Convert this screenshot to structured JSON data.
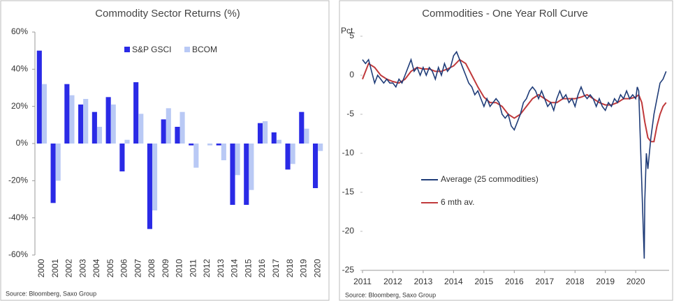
{
  "chart_data": [
    {
      "type": "bar",
      "title": "Commodity Sector Returns (%)",
      "categories": [
        "2000",
        "2001",
        "2002",
        "2003",
        "2004",
        "2005",
        "2006",
        "2007",
        "2008",
        "2009",
        "2010",
        "2011",
        "2012",
        "2013",
        "2014",
        "2015",
        "2016",
        "2017",
        "2018",
        "2019",
        "2020"
      ],
      "series": [
        {
          "name": "S&P GSCI",
          "color": "#2a2ae6",
          "values": [
            50,
            -32,
            32,
            21,
            17,
            25,
            -15,
            33,
            -46,
            13,
            9,
            -1,
            0,
            -1,
            -33,
            -33,
            11,
            6,
            -14,
            17,
            -24
          ]
        },
        {
          "name": "BCOM",
          "color": "#b9c9f5",
          "values": [
            32,
            -20,
            26,
            24,
            9,
            21,
            2,
            16,
            -36,
            19,
            17,
            -13,
            -1,
            -9,
            -17,
            -25,
            12,
            2,
            -11,
            8,
            -4
          ]
        }
      ],
      "ylim": [
        -60,
        60
      ],
      "yticks": [
        {
          "value": -60,
          "label": "-60%"
        },
        {
          "value": -40,
          "label": "-40%"
        },
        {
          "value": -20,
          "label": "-20%"
        },
        {
          "value": 0,
          "label": "0%"
        },
        {
          "value": 20,
          "label": "20%"
        },
        {
          "value": 40,
          "label": "40%"
        },
        {
          "value": 60,
          "label": "60%"
        }
      ],
      "source": "Source: Bloomberg,  Saxo Group"
    },
    {
      "type": "line",
      "title": "Commodities - One Year Roll Curve",
      "y_label": "Pct.",
      "series": [
        {
          "name": "Average (25 commodities)",
          "color": "#1f3c78",
          "x": [
            2011.0,
            2011.1,
            2011.2,
            2011.3,
            2011.4,
            2011.5,
            2011.6,
            2011.7,
            2011.8,
            2011.9,
            2012.0,
            2012.1,
            2012.2,
            2012.3,
            2012.4,
            2012.5,
            2012.6,
            2012.7,
            2012.8,
            2012.9,
            2013.0,
            2013.1,
            2013.2,
            2013.3,
            2013.4,
            2013.5,
            2013.6,
            2013.7,
            2013.8,
            2013.9,
            2014.0,
            2014.1,
            2014.2,
            2014.3,
            2014.4,
            2014.5,
            2014.6,
            2014.7,
            2014.8,
            2014.9,
            2015.0,
            2015.1,
            2015.2,
            2015.3,
            2015.4,
            2015.5,
            2015.6,
            2015.7,
            2015.8,
            2015.9,
            2016.0,
            2016.1,
            2016.2,
            2016.3,
            2016.4,
            2016.5,
            2016.6,
            2016.7,
            2016.8,
            2016.9,
            2017.0,
            2017.1,
            2017.2,
            2017.3,
            2017.4,
            2017.5,
            2017.6,
            2017.7,
            2017.8,
            2017.9,
            2018.0,
            2018.1,
            2018.2,
            2018.3,
            2018.4,
            2018.5,
            2018.6,
            2018.7,
            2018.8,
            2018.9,
            2019.0,
            2019.1,
            2019.2,
            2019.3,
            2019.4,
            2019.5,
            2019.6,
            2019.7,
            2019.8,
            2019.9,
            2020.0,
            2020.05,
            2020.1,
            2020.15,
            2020.2,
            2020.25,
            2020.28,
            2020.3,
            2020.35,
            2020.4,
            2020.5,
            2020.6,
            2020.7,
            2020.8,
            2020.9,
            2021.0
          ],
          "values": [
            2,
            1.5,
            2,
            0.5,
            -1,
            0,
            -0.5,
            -1,
            -0.5,
            -1,
            -1,
            -1.5,
            -0.5,
            -1,
            0,
            1,
            2,
            0.5,
            1,
            0,
            1,
            0,
            1,
            0.5,
            -0.5,
            1,
            0,
            1.5,
            0.5,
            1,
            2.5,
            3,
            2,
            1,
            0,
            -1,
            -1.5,
            -2.5,
            -2,
            -3,
            -4,
            -3,
            -4,
            -3.5,
            -3,
            -3.5,
            -5,
            -5.5,
            -5,
            -6.5,
            -7,
            -6,
            -5,
            -3.5,
            -3,
            -2,
            -1.5,
            -2,
            -3,
            -2,
            -3,
            -4,
            -3.5,
            -4.5,
            -3,
            -2,
            -3,
            -2.5,
            -3.5,
            -3,
            -4,
            -2.5,
            -1.5,
            -2.5,
            -3,
            -2.5,
            -3,
            -4,
            -3,
            -4,
            -4.5,
            -3.5,
            -4,
            -3,
            -3.5,
            -2.5,
            -3,
            -2,
            -3,
            -2.5,
            -3,
            -1.5,
            -2,
            -8,
            -14,
            -20,
            -23.5,
            -16,
            -10,
            -12,
            -8,
            -5,
            -3,
            -1,
            -0.5,
            0.5
          ]
        },
        {
          "name": "6 mth av.",
          "color": "#c0393b",
          "x": [
            2011.0,
            2011.2,
            2011.4,
            2011.6,
            2011.8,
            2012.0,
            2012.2,
            2012.4,
            2012.6,
            2012.8,
            2013.0,
            2013.2,
            2013.4,
            2013.6,
            2013.8,
            2014.0,
            2014.2,
            2014.4,
            2014.6,
            2014.8,
            2015.0,
            2015.2,
            2015.4,
            2015.6,
            2015.8,
            2016.0,
            2016.2,
            2016.4,
            2016.6,
            2016.8,
            2017.0,
            2017.2,
            2017.4,
            2017.6,
            2017.8,
            2018.0,
            2018.2,
            2018.4,
            2018.6,
            2018.8,
            2019.0,
            2019.2,
            2019.4,
            2019.6,
            2019.8,
            2020.0,
            2020.1,
            2020.2,
            2020.3,
            2020.4,
            2020.5,
            2020.6,
            2020.7,
            2020.8,
            2020.9,
            2021.0
          ],
          "values": [
            -0.5,
            1.5,
            1,
            0,
            -0.5,
            -0.8,
            -1,
            -0.5,
            0.5,
            1,
            0.8,
            0.8,
            0.5,
            0.5,
            0.8,
            1.2,
            2,
            1.5,
            0,
            -1.5,
            -2.8,
            -3.5,
            -3.5,
            -4,
            -5,
            -5.5,
            -5,
            -4,
            -3,
            -2.5,
            -3,
            -3.5,
            -3.5,
            -3,
            -3,
            -3,
            -2.8,
            -2.5,
            -3,
            -3.5,
            -3.8,
            -3.8,
            -3.5,
            -3,
            -3,
            -2.8,
            -2.5,
            -3.5,
            -6,
            -8,
            -8.5,
            -8.5,
            -6.5,
            -5,
            -4,
            -3.5
          ]
        }
      ],
      "xlim": [
        2011,
        2021.1
      ],
      "xticks": [
        2011,
        2012,
        2013,
        2014,
        2015,
        2016,
        2017,
        2018,
        2019,
        2020
      ],
      "ylim": [
        -25,
        5
      ],
      "yticks": [
        -25,
        -20,
        -15,
        -10,
        -5,
        0,
        5
      ],
      "source": "Source: Bloomberg,  Saxo Group"
    }
  ]
}
